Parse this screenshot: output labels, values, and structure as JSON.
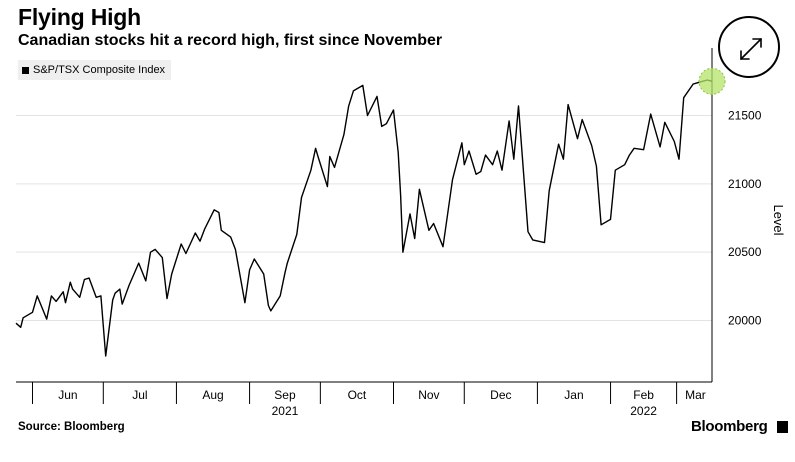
{
  "header": {
    "title": "Flying High",
    "subtitle": "Canadian stocks hit a record high, first since November"
  },
  "footer": {
    "source": "Source: Bloomberg",
    "brand": "Bloomberg"
  },
  "icons": {
    "expand": "expand-arrows-icon",
    "brand": "bloomberg-terminal-icon"
  },
  "colors": {
    "line": "#000000",
    "grid": "#e3e3e3",
    "highlight": "#b5e36a",
    "legend_bg": "#efefef"
  },
  "chart_data": {
    "type": "line",
    "legend": [
      "S&P/TSX Composite Index"
    ],
    "ylabel": "Level",
    "ylim": [
      19550,
      21950
    ],
    "yticks": [
      20000,
      20500,
      21000,
      21500
    ],
    "grid": true,
    "legend_position": "top-left",
    "x_month_labels": [
      "Jun",
      "Jul",
      "Aug",
      "Sep",
      "Oct",
      "Nov",
      "Dec",
      "Jan",
      "Feb",
      "Mar"
    ],
    "x_year_labels": [
      {
        "label": "2021",
        "under": "Sep"
      },
      {
        "label": "2022",
        "under": "Feb"
      }
    ],
    "highlight_last_point": true,
    "series": [
      {
        "name": "S&P/TSX Composite Index",
        "x": [
          "2021-05-25",
          "2021-05-27",
          "2021-05-28",
          "2021-06-01",
          "2021-06-03",
          "2021-06-07",
          "2021-06-09",
          "2021-06-11",
          "2021-06-14",
          "2021-06-15",
          "2021-06-17",
          "2021-06-18",
          "2021-06-21",
          "2021-06-23",
          "2021-06-25",
          "2021-06-28",
          "2021-06-30",
          "2021-07-02",
          "2021-07-05",
          "2021-07-06",
          "2021-07-08",
          "2021-07-09",
          "2021-07-12",
          "2021-07-14",
          "2021-07-16",
          "2021-07-19",
          "2021-07-21",
          "2021-07-23",
          "2021-07-26",
          "2021-07-28",
          "2021-07-30",
          "2021-08-03",
          "2021-08-05",
          "2021-08-09",
          "2021-08-11",
          "2021-08-13",
          "2021-08-17",
          "2021-08-19",
          "2021-08-20",
          "2021-08-24",
          "2021-08-26",
          "2021-08-30",
          "2021-09-01",
          "2021-09-03",
          "2021-09-07",
          "2021-09-09",
          "2021-09-10",
          "2021-09-14",
          "2021-09-16",
          "2021-09-17",
          "2021-09-21",
          "2021-09-23",
          "2021-09-27",
          "2021-09-29",
          "2021-09-30",
          "2021-10-04",
          "2021-10-05",
          "2021-10-07",
          "2021-10-11",
          "2021-10-13",
          "2021-10-15",
          "2021-10-19",
          "2021-10-21",
          "2021-10-25",
          "2021-10-27",
          "2021-10-29",
          "2021-11-01",
          "2021-11-03",
          "2021-11-04",
          "2021-11-05",
          "2021-11-08",
          "2021-11-10",
          "2021-11-12",
          "2021-11-16",
          "2021-11-18",
          "2021-11-22",
          "2021-11-26",
          "2021-11-30",
          "2021-12-01",
          "2021-12-03",
          "2021-12-06",
          "2021-12-08",
          "2021-12-10",
          "2021-12-13",
          "2021-12-15",
          "2021-12-17",
          "2021-12-20",
          "2021-12-22",
          "2021-12-24",
          "2021-12-28",
          "2021-12-30",
          "2022-01-04",
          "2022-01-06",
          "2022-01-10",
          "2022-01-12",
          "2022-01-14",
          "2022-01-18",
          "2022-01-20",
          "2022-01-24",
          "2022-01-26",
          "2022-01-28",
          "2022-02-01",
          "2022-02-03",
          "2022-02-07",
          "2022-02-09",
          "2022-02-11",
          "2022-02-15",
          "2022-02-18",
          "2022-02-22",
          "2022-02-24",
          "2022-02-28",
          "2022-03-02",
          "2022-03-04",
          "2022-03-08",
          "2022-03-10",
          "2022-03-14",
          "2022-03-16"
        ],
        "y": [
          19980,
          19950,
          20020,
          20060,
          20180,
          20010,
          20180,
          20140,
          20210,
          20130,
          20280,
          20230,
          20170,
          20300,
          20310,
          20170,
          20180,
          19740,
          20150,
          20200,
          20230,
          20120,
          20260,
          20340,
          20420,
          20290,
          20500,
          20520,
          20460,
          20160,
          20340,
          20560,
          20490,
          20640,
          20580,
          20670,
          20810,
          20790,
          20660,
          20610,
          20520,
          20130,
          20370,
          20450,
          20340,
          20110,
          20070,
          20180,
          20350,
          20420,
          20630,
          20900,
          21100,
          21260,
          21200,
          20980,
          21200,
          21120,
          21360,
          21570,
          21680,
          21720,
          21500,
          21640,
          21420,
          21440,
          21540,
          21230,
          20920,
          20500,
          20780,
          20600,
          20960,
          20660,
          20710,
          20540,
          21030,
          21300,
          21140,
          21240,
          21070,
          21090,
          21210,
          21140,
          21240,
          21100,
          21460,
          21180,
          21570,
          20650,
          20590,
          20570,
          20950,
          21290,
          21180,
          21580,
          21330,
          21470,
          21280,
          21130,
          20700,
          20740,
          21100,
          21140,
          21210,
          21260,
          21250,
          21510,
          21270,
          21450,
          21310,
          21180,
          21630,
          21730,
          21740,
          21760,
          21750
        ]
      }
    ]
  }
}
